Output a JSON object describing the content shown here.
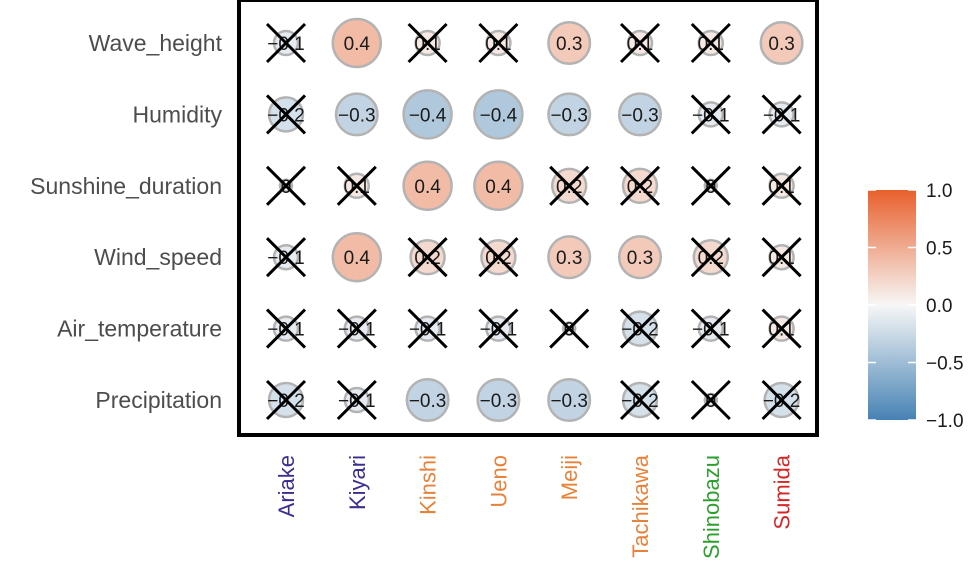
{
  "chart_data": {
    "type": "heatmap",
    "rows": [
      "Wave_height",
      "Humidity",
      "Sunshine_duration",
      "Wind_speed",
      "Air_temperature",
      "Precipitation"
    ],
    "columns": [
      {
        "label": "Ariake",
        "color": "#3a2f8f"
      },
      {
        "label": "Kiyari",
        "color": "#3a2f8f"
      },
      {
        "label": "Kinshi",
        "color": "#e8823a"
      },
      {
        "label": "Ueno",
        "color": "#e8823a"
      },
      {
        "label": "Meiji",
        "color": "#e8823a"
      },
      {
        "label": "Tachikawa",
        "color": "#e8823a"
      },
      {
        "label": "Shinobazu",
        "color": "#2ca02c"
      },
      {
        "label": "Sumida",
        "color": "#d62728"
      }
    ],
    "values": [
      [
        -0.1,
        0.4,
        0.1,
        0.1,
        0.3,
        0.1,
        0.1,
        0.3
      ],
      [
        -0.2,
        -0.3,
        -0.4,
        -0.4,
        -0.3,
        -0.3,
        -0.1,
        -0.1
      ],
      [
        0,
        0.1,
        0.4,
        0.4,
        0.2,
        0.2,
        0,
        0.1
      ],
      [
        -0.1,
        0.4,
        0.2,
        0.2,
        0.3,
        0.3,
        0.2,
        0.1
      ],
      [
        -0.1,
        -0.1,
        -0.1,
        -0.1,
        0,
        -0.2,
        -0.1,
        0.1
      ],
      [
        -0.2,
        -0.1,
        -0.3,
        -0.3,
        -0.3,
        -0.2,
        0,
        -0.2
      ]
    ],
    "labels": [
      [
        "−0.1",
        "0.4",
        "0.1",
        "0.1",
        "0.3",
        "0.1",
        "0.1",
        "0.3"
      ],
      [
        "−0.2",
        "−0.3",
        "−0.4",
        "−0.4",
        "−0.3",
        "−0.3",
        "−0.1",
        "−0.1"
      ],
      [
        "0",
        "0.1",
        "0.4",
        "0.4",
        "0.2",
        "0.2",
        "0",
        "0.1"
      ],
      [
        "−0.1",
        "0.4",
        "0.2",
        "0.2",
        "0.3",
        "0.3",
        "0.2",
        "0.1"
      ],
      [
        "−0.1",
        "−0.1",
        "−0.1",
        "−0.1",
        "0",
        "−0.2",
        "−0.1",
        "0.1"
      ],
      [
        "−0.2",
        "−0.1",
        "−0.3",
        "−0.3",
        "−0.3",
        "−0.2",
        "0",
        "−0.2"
      ]
    ],
    "crossed": [
      [
        true,
        false,
        true,
        true,
        false,
        true,
        true,
        false
      ],
      [
        true,
        false,
        false,
        false,
        false,
        false,
        true,
        true
      ],
      [
        true,
        true,
        false,
        false,
        true,
        true,
        true,
        true
      ],
      [
        true,
        false,
        true,
        true,
        false,
        false,
        true,
        true
      ],
      [
        true,
        true,
        true,
        true,
        true,
        true,
        true,
        true
      ],
      [
        true,
        true,
        false,
        false,
        false,
        true,
        true,
        true
      ]
    ],
    "scale": {
      "min": -1.0,
      "max": 1.0,
      "ticks": [
        "1.0",
        "0.5",
        "0.0",
        "−0.5",
        "−1.0"
      ],
      "tick_values": [
        1.0,
        0.5,
        0.0,
        -0.5,
        -1.0
      ],
      "low_color": "#4682b4",
      "mid_color": "#f7f7f7",
      "high_color": "#e8602c"
    },
    "legend_position": "right",
    "grid": false
  }
}
